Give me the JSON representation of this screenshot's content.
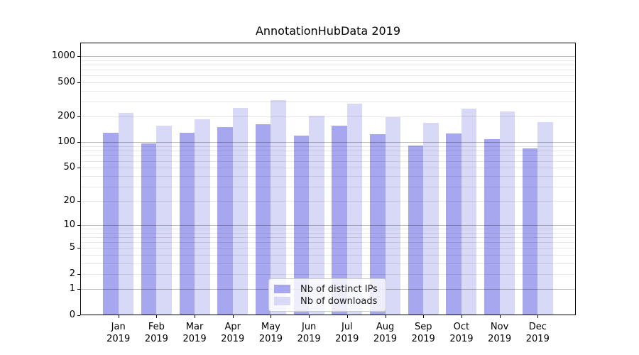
{
  "title": "AnnotationHubData 2019",
  "colors": {
    "distinct_ips": "#a7a7f0",
    "downloads": "#d8d8f7",
    "grid_major": "rgba(0,0,0,0.28)",
    "grid_minor": "rgba(0,0,0,0.09)",
    "axis": "#000000",
    "text": "#000000",
    "legend_border": "#cccccc"
  },
  "legend": {
    "items": [
      "Nb of distinct IPs",
      "Nb of downloads"
    ]
  },
  "chart_data": {
    "type": "bar",
    "title": "AnnotationHubData 2019",
    "y_scale": "log10(1+y)",
    "categories": [
      "Jan",
      "Feb",
      "Mar",
      "Apr",
      "May",
      "Jun",
      "Jul",
      "Aug",
      "Sep",
      "Oct",
      "Nov",
      "Dec"
    ],
    "year": "2019",
    "series": [
      {
        "name": "Nb of distinct IPs",
        "color": "#a7a7f0",
        "values": [
          129,
          97,
          130,
          151,
          162,
          120,
          156,
          124,
          92,
          126,
          108,
          85
        ]
      },
      {
        "name": "Nb of downloads",
        "color": "#d8d8f7",
        "values": [
          220,
          157,
          187,
          253,
          310,
          204,
          284,
          195,
          169,
          245,
          228,
          173
        ]
      }
    ],
    "y_ticks": [
      0,
      1,
      2,
      5,
      10,
      20,
      50,
      100,
      200,
      500,
      1000
    ],
    "ylim": [
      0,
      1440
    ],
    "grid": "major and minor, drawn over bars",
    "legend_position": "lower-center"
  }
}
